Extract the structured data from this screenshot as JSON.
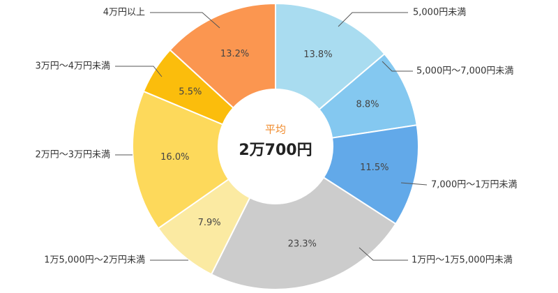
{
  "chart_data": {
    "type": "donut",
    "categories": [
      "5,000円未満",
      "5,000円〜7,000円未満",
      "7,000円〜1万円未満",
      "1万円〜1万5,000円未満",
      "1万5,000円〜2万円未満",
      "2万円〜3万円未満",
      "3万円〜4万円未満",
      "4万円以上"
    ],
    "values": [
      13.8,
      8.8,
      11.5,
      23.3,
      7.9,
      16.0,
      5.5,
      13.2
    ],
    "value_labels": [
      "13.8%",
      "8.8%",
      "11.5%",
      "23.3%",
      "7.9%",
      "16.0%",
      "5.5%",
      "13.2%"
    ],
    "colors": [
      "#a9dcf0",
      "#84c8f0",
      "#62a9e9",
      "#cccccc",
      "#fbeaa2",
      "#fdd95b",
      "#fbbd0c",
      "#fb9650"
    ],
    "center_label": "平均",
    "center_value": "2万700円"
  }
}
